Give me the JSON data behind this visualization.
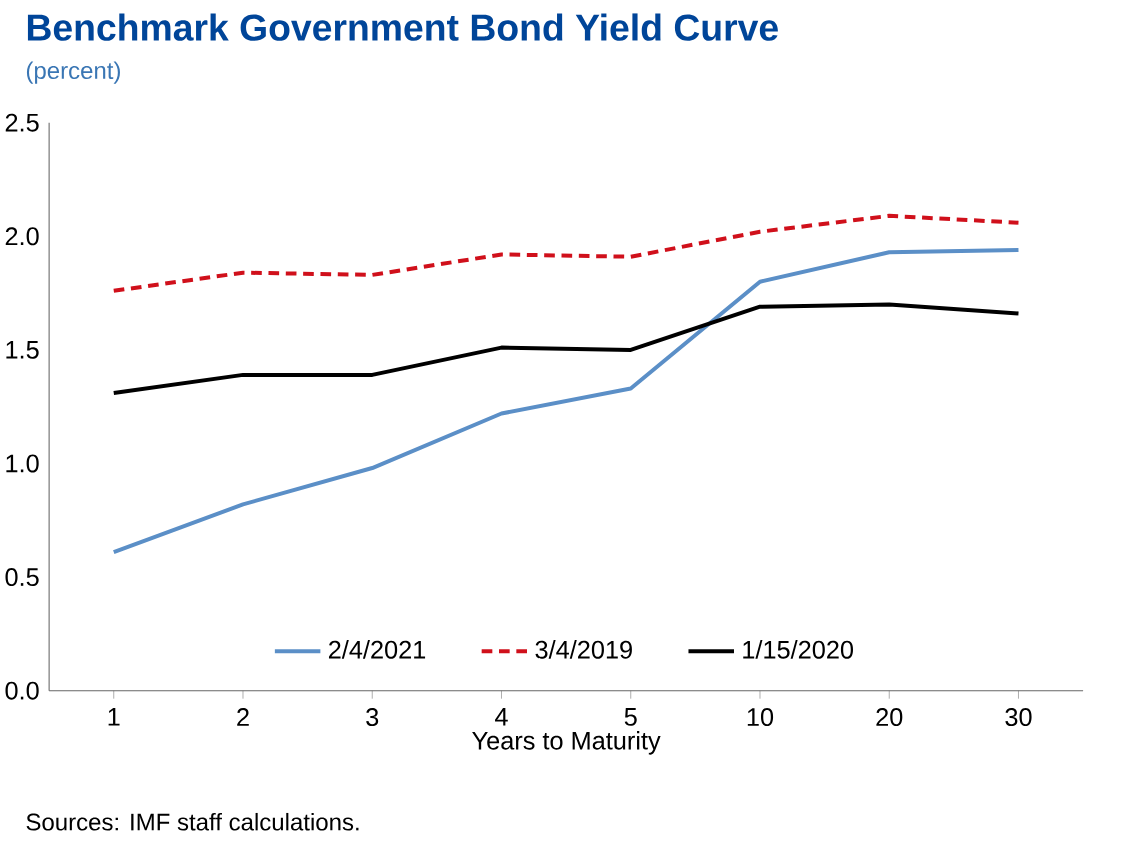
{
  "chart_data": {
    "type": "line",
    "title": "Benchmark Government Bond Yield Curve",
    "subtitle": "(percent)",
    "xlabel": "Years to Maturity",
    "categories": [
      "1",
      "2",
      "3",
      "4",
      "5",
      "10",
      "20",
      "30"
    ],
    "series": [
      {
        "name": "2/4/2021",
        "color": "#5b8fc7",
        "line_style": "solid",
        "values": [
          0.61,
          0.82,
          0.98,
          1.22,
          1.33,
          1.8,
          1.93,
          1.94
        ]
      },
      {
        "name": "3/4/2019",
        "color": "#d0101b",
        "line_style": "dashed",
        "values": [
          1.76,
          1.84,
          1.83,
          1.92,
          1.91,
          2.02,
          2.09,
          2.06
        ]
      },
      {
        "name": "1/15/2020",
        "color": "#000000",
        "line_style": "solid",
        "values": [
          1.31,
          1.39,
          1.39,
          1.51,
          1.5,
          1.69,
          1.7,
          1.66
        ]
      }
    ],
    "ylim": [
      0,
      2.5
    ],
    "yticks": [
      {
        "value": 0,
        "label": "0.0"
      },
      {
        "value": 0.5,
        "label": "0.5"
      },
      {
        "value": 1,
        "label": "1.0"
      },
      {
        "value": 1.5,
        "label": "1.5"
      },
      {
        "value": 2,
        "label": "2.0"
      },
      {
        "value": 2.5,
        "label": "2.5"
      }
    ],
    "grid": false,
    "legend": "bottom",
    "marker": "none",
    "annotations": [
      "Sources: IMF staff calculations."
    ]
  }
}
